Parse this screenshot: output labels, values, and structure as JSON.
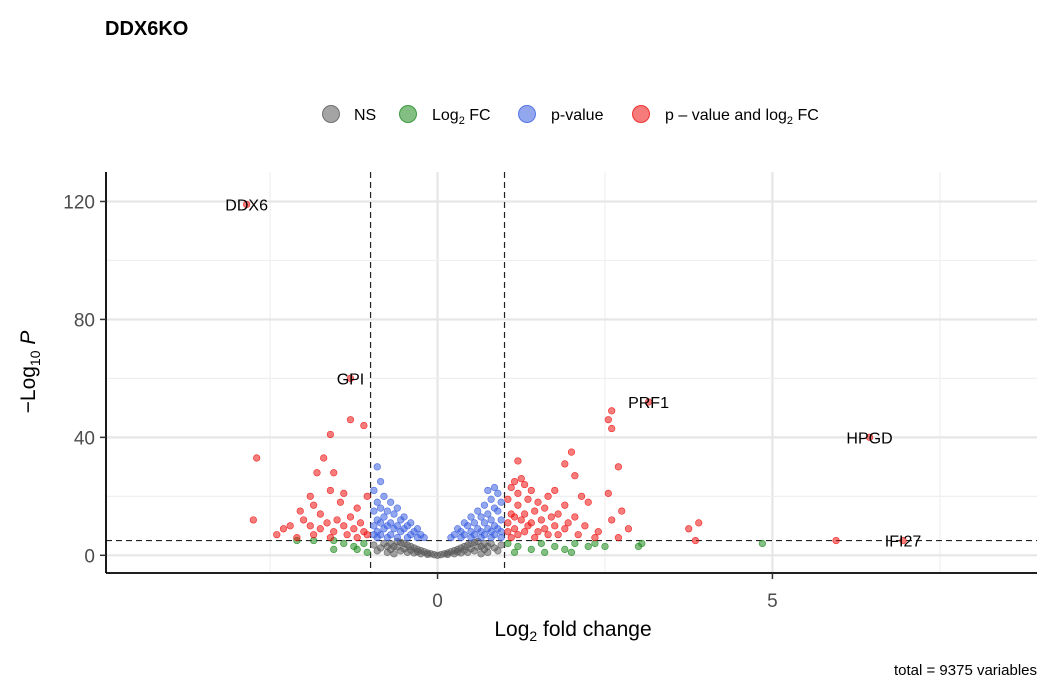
{
  "chart_data": {
    "type": "scatter",
    "title": "DDX6KO",
    "xlabel": "Log₂ fold change",
    "ylabel": "−Log₁₀ P",
    "caption": "total = 9375 variables",
    "xlim": [
      -4.95,
      8.95
    ],
    "ylim": [
      -6,
      130
    ],
    "x_ticks": [
      0,
      5
    ],
    "y_ticks": [
      0,
      40,
      80,
      120
    ],
    "grid": true,
    "legend_position": "top",
    "cutoffs": {
      "log2fc": [
        -1,
        1
      ],
      "neg_log10_p": 5
    },
    "colors": {
      "NS": "#595959",
      "Log2 FC": "#1e8a1e",
      "p-value": "#3a5fe0",
      "p-value and log2 FC": "#ee1111"
    },
    "legend": [
      {
        "key": "NS",
        "label": "NS",
        "color": "#595959"
      },
      {
        "key": "Log2 FC",
        "label": "Log₂ FC",
        "color": "#1e8a1e"
      },
      {
        "key": "p-value",
        "label": "p-value",
        "color": "#3a5fe0"
      },
      {
        "key": "p-value and log2 FC",
        "label": "p – value and log₂ FC",
        "color": "#ee1111"
      }
    ],
    "labeled_genes": [
      {
        "gene": "DDX6",
        "x": -2.85,
        "y": 119
      },
      {
        "gene": "GPI",
        "x": -1.3,
        "y": 60
      },
      {
        "gene": "PRF1",
        "x": 3.15,
        "y": 52
      },
      {
        "gene": "HPGD",
        "x": 6.45,
        "y": 40
      },
      {
        "gene": "IFI27",
        "x": 6.95,
        "y": 5
      }
    ],
    "series": [
      {
        "name": "p – value and log₂ FC",
        "color": "#ee1111",
        "points": [
          [
            -2.85,
            119
          ],
          [
            -1.3,
            60
          ],
          [
            -1.3,
            46
          ],
          [
            -1.1,
            44
          ],
          [
            -1.6,
            41
          ],
          [
            -1.7,
            33
          ],
          [
            -2.7,
            33
          ],
          [
            -1.8,
            28
          ],
          [
            -1.55,
            28
          ],
          [
            -1.6,
            22
          ],
          [
            -1.4,
            21
          ],
          [
            -1.9,
            20
          ],
          [
            -1.05,
            20
          ],
          [
            -1.45,
            18
          ],
          [
            -1.85,
            17
          ],
          [
            -1.2,
            16
          ],
          [
            -2.05,
            15
          ],
          [
            -1.75,
            14
          ],
          [
            -1.3,
            13
          ],
          [
            -1.5,
            12
          ],
          [
            -2.0,
            12
          ],
          [
            -1.65,
            11
          ],
          [
            -1.15,
            11
          ],
          [
            -2.2,
            10
          ],
          [
            -1.9,
            10
          ],
          [
            -1.4,
            10
          ],
          [
            -1.25,
            9
          ],
          [
            -2.3,
            9
          ],
          [
            -1.75,
            9
          ],
          [
            -1.1,
            8
          ],
          [
            -1.55,
            8
          ],
          [
            -2.75,
            12
          ],
          [
            -2.4,
            7
          ],
          [
            -1.85,
            7
          ],
          [
            -1.35,
            7
          ],
          [
            -1.05,
            7
          ],
          [
            -1.6,
            6
          ],
          [
            -2.1,
            6
          ],
          [
            -1.2,
            6
          ],
          [
            3.15,
            52
          ],
          [
            2.6,
            49
          ],
          [
            2.55,
            46
          ],
          [
            2.6,
            43
          ],
          [
            2.0,
            35
          ],
          [
            1.9,
            31
          ],
          [
            2.7,
            30
          ],
          [
            1.2,
            32
          ],
          [
            2.05,
            27
          ],
          [
            1.25,
            26
          ],
          [
            1.15,
            25
          ],
          [
            1.3,
            24
          ],
          [
            1.1,
            23
          ],
          [
            1.4,
            22
          ],
          [
            1.75,
            22
          ],
          [
            1.2,
            21
          ],
          [
            2.55,
            21
          ],
          [
            2.15,
            20
          ],
          [
            1.65,
            20
          ],
          [
            1.35,
            19
          ],
          [
            1.05,
            19
          ],
          [
            1.5,
            18
          ],
          [
            2.25,
            18
          ],
          [
            1.9,
            17
          ],
          [
            1.2,
            17
          ],
          [
            1.6,
            16
          ],
          [
            2.75,
            15
          ],
          [
            1.45,
            15
          ],
          [
            1.1,
            14
          ],
          [
            1.8,
            14
          ],
          [
            1.3,
            14
          ],
          [
            2.05,
            13
          ],
          [
            1.7,
            13
          ],
          [
            1.15,
            13
          ],
          [
            1.55,
            12
          ],
          [
            2.6,
            12
          ],
          [
            1.25,
            12
          ],
          [
            1.95,
            11
          ],
          [
            1.4,
            11
          ],
          [
            1.05,
            11
          ],
          [
            1.75,
            10
          ],
          [
            2.2,
            10
          ],
          [
            1.35,
            10
          ],
          [
            2.85,
            9
          ],
          [
            1.6,
            9
          ],
          [
            1.15,
            9
          ],
          [
            1.9,
            9
          ],
          [
            1.5,
            8
          ],
          [
            1.05,
            8
          ],
          [
            2.4,
            8
          ],
          [
            1.3,
            8
          ],
          [
            1.8,
            7
          ],
          [
            2.1,
            7
          ],
          [
            1.2,
            7
          ],
          [
            1.65,
            7
          ],
          [
            2.7,
            6
          ],
          [
            1.45,
            6
          ],
          [
            1.1,
            6
          ],
          [
            2.35,
            6
          ],
          [
            3.9,
            11
          ],
          [
            3.75,
            9
          ],
          [
            3.85,
            5
          ],
          [
            6.45,
            40
          ],
          [
            6.95,
            5
          ],
          [
            5.95,
            5
          ]
        ]
      },
      {
        "name": "p-value",
        "color": "#3a5fe0",
        "points": [
          [
            -0.9,
            30
          ],
          [
            -0.85,
            25
          ],
          [
            -0.95,
            22
          ],
          [
            -0.8,
            20
          ],
          [
            -0.7,
            18
          ],
          [
            -0.9,
            18
          ],
          [
            -0.6,
            16
          ],
          [
            -0.85,
            16
          ],
          [
            -0.75,
            15
          ],
          [
            -0.95,
            15
          ],
          [
            -0.5,
            13
          ],
          [
            -0.65,
            14
          ],
          [
            -0.8,
            13
          ],
          [
            -0.9,
            12
          ],
          [
            -0.4,
            11
          ],
          [
            -0.55,
            12
          ],
          [
            -0.7,
            11
          ],
          [
            -0.85,
            11
          ],
          [
            -0.3,
            9
          ],
          [
            -0.45,
            10
          ],
          [
            -0.6,
            10
          ],
          [
            -0.75,
            10
          ],
          [
            -0.95,
            10
          ],
          [
            -0.35,
            8
          ],
          [
            -0.5,
            9
          ],
          [
            -0.65,
            9
          ],
          [
            -0.8,
            9
          ],
          [
            -0.9,
            8
          ],
          [
            -0.25,
            7
          ],
          [
            -0.4,
            7
          ],
          [
            -0.55,
            8
          ],
          [
            -0.7,
            7
          ],
          [
            -0.85,
            7
          ],
          [
            -0.95,
            7
          ],
          [
            -0.3,
            6
          ],
          [
            -0.45,
            6
          ],
          [
            -0.6,
            6
          ],
          [
            -0.75,
            6
          ],
          [
            -0.9,
            6
          ],
          [
            -0.2,
            6
          ],
          [
            0.85,
            23
          ],
          [
            0.9,
            21
          ],
          [
            0.75,
            22
          ],
          [
            0.8,
            19
          ],
          [
            0.95,
            18
          ],
          [
            0.7,
            17
          ],
          [
            0.85,
            16
          ],
          [
            0.6,
            15
          ],
          [
            0.9,
            15
          ],
          [
            0.75,
            14
          ],
          [
            0.5,
            13
          ],
          [
            0.65,
            13
          ],
          [
            0.8,
            12
          ],
          [
            0.95,
            12
          ],
          [
            0.4,
            11
          ],
          [
            0.55,
            11
          ],
          [
            0.7,
            11
          ],
          [
            0.85,
            10
          ],
          [
            0.3,
            9
          ],
          [
            0.45,
            10
          ],
          [
            0.6,
            9
          ],
          [
            0.75,
            9
          ],
          [
            0.9,
            9
          ],
          [
            0.35,
            8
          ],
          [
            0.5,
            8
          ],
          [
            0.65,
            8
          ],
          [
            0.8,
            8
          ],
          [
            0.95,
            8
          ],
          [
            0.25,
            7
          ],
          [
            0.4,
            7
          ],
          [
            0.55,
            7
          ],
          [
            0.7,
            7
          ],
          [
            0.85,
            7
          ],
          [
            0.2,
            6
          ],
          [
            0.35,
            6
          ],
          [
            0.5,
            6
          ],
          [
            0.65,
            6
          ],
          [
            0.8,
            6
          ],
          [
            0.95,
            6
          ]
        ]
      },
      {
        "name": "Log₂ FC",
        "color": "#1e8a1e",
        "points": [
          [
            -2.1,
            5
          ],
          [
            -1.85,
            5
          ],
          [
            -1.55,
            5
          ],
          [
            -1.4,
            4
          ],
          [
            -1.25,
            3
          ],
          [
            -1.55,
            2
          ],
          [
            -1.2,
            2
          ],
          [
            -1.1,
            4
          ],
          [
            -1.05,
            1
          ],
          [
            1.05,
            4
          ],
          [
            1.2,
            3
          ],
          [
            1.4,
            2
          ],
          [
            1.55,
            4
          ],
          [
            1.75,
            3
          ],
          [
            1.9,
            2
          ],
          [
            2.05,
            4
          ],
          [
            2.25,
            3
          ],
          [
            2.35,
            4
          ],
          [
            2.5,
            3
          ],
          [
            1.15,
            1
          ],
          [
            1.6,
            1
          ],
          [
            2.0,
            1
          ],
          [
            3.0,
            3
          ],
          [
            3.05,
            4
          ],
          [
            4.85,
            4
          ]
        ]
      },
      {
        "name": "NS",
        "color": "#595959",
        "points": [
          [
            0,
            0
          ],
          [
            0.05,
            0.2
          ],
          [
            -0.05,
            0.2
          ],
          [
            0.1,
            0.5
          ],
          [
            -0.1,
            0.5
          ],
          [
            0.15,
            0.8
          ],
          [
            -0.15,
            0.8
          ],
          [
            0.2,
            1.2
          ],
          [
            -0.2,
            1.2
          ],
          [
            0.25,
            1.6
          ],
          [
            -0.25,
            1.6
          ],
          [
            0.3,
            2
          ],
          [
            -0.3,
            2
          ],
          [
            0.35,
            2.5
          ],
          [
            -0.35,
            2.5
          ],
          [
            0.4,
            3
          ],
          [
            -0.4,
            3
          ],
          [
            0.45,
            3.5
          ],
          [
            -0.45,
            3.5
          ],
          [
            0.5,
            4
          ],
          [
            -0.5,
            4
          ],
          [
            0.55,
            4.4
          ],
          [
            -0.55,
            4.4
          ],
          [
            0.6,
            4.7
          ],
          [
            -0.6,
            4.7
          ],
          [
            0.65,
            3
          ],
          [
            -0.65,
            3
          ],
          [
            0.7,
            2
          ],
          [
            -0.7,
            2
          ],
          [
            0.75,
            1
          ],
          [
            -0.75,
            1
          ],
          [
            0.8,
            4
          ],
          [
            -0.8,
            4
          ],
          [
            0.85,
            2.5
          ],
          [
            -0.85,
            2.5
          ],
          [
            0.9,
            1.5
          ],
          [
            -0.9,
            1.5
          ],
          [
            0.95,
            3.5
          ],
          [
            -0.95,
            3.5
          ],
          [
            0.55,
            1.5
          ],
          [
            -0.55,
            1.5
          ],
          [
            0.45,
            1
          ],
          [
            -0.45,
            1
          ],
          [
            0.35,
            0.8
          ],
          [
            -0.35,
            0.8
          ],
          [
            0.25,
            0.5
          ],
          [
            -0.25,
            0.5
          ],
          [
            0.65,
            0.5
          ],
          [
            -0.65,
            0.5
          ],
          [
            0.15,
            0.3
          ],
          [
            -0.15,
            0.3
          ],
          [
            0.75,
            3
          ],
          [
            -0.75,
            3
          ],
          [
            0.5,
            2.2
          ],
          [
            -0.5,
            2.2
          ],
          [
            0.4,
            1.7
          ],
          [
            -0.4,
            1.7
          ],
          [
            0.6,
            2.8
          ],
          [
            -0.6,
            2.8
          ],
          [
            0.7,
            4
          ],
          [
            -0.7,
            4
          ],
          [
            0.3,
            1.2
          ],
          [
            -0.3,
            1.2
          ]
        ]
      }
    ]
  }
}
